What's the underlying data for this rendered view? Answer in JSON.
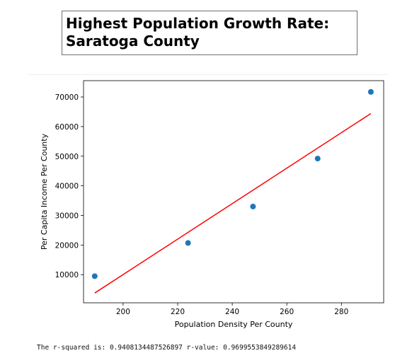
{
  "header": {
    "title_line_1": "Highest Population Growth Rate:",
    "title_line_2": "Saratoga County"
  },
  "output_text": "The r-squared is: 0.9408134487526897 r-value: 0.9699553849289614",
  "colors": {
    "points": "#1f77b4",
    "regression_line": "#ff0000",
    "axes": "#000000"
  },
  "chart_data": {
    "type": "scatter",
    "title": "",
    "xlabel": "Population Density Per County",
    "ylabel": "Per Capita Income Per County",
    "xlim": [
      185.5,
      295.5
    ],
    "ylim": [
      500,
      75500
    ],
    "xticks": [
      200,
      220,
      240,
      260,
      280
    ],
    "yticks": [
      10000,
      20000,
      30000,
      40000,
      50000,
      60000,
      70000
    ],
    "grid": false,
    "series": [
      {
        "kind": "points",
        "x": [
          189.6,
          223.8,
          247.6,
          271.3,
          290.8
        ],
        "y": [
          9500,
          20700,
          33000,
          49200,
          71700
        ]
      },
      {
        "kind": "regression_line",
        "x": [
          189.6,
          290.8
        ],
        "y": [
          3800,
          64400
        ]
      }
    ]
  }
}
